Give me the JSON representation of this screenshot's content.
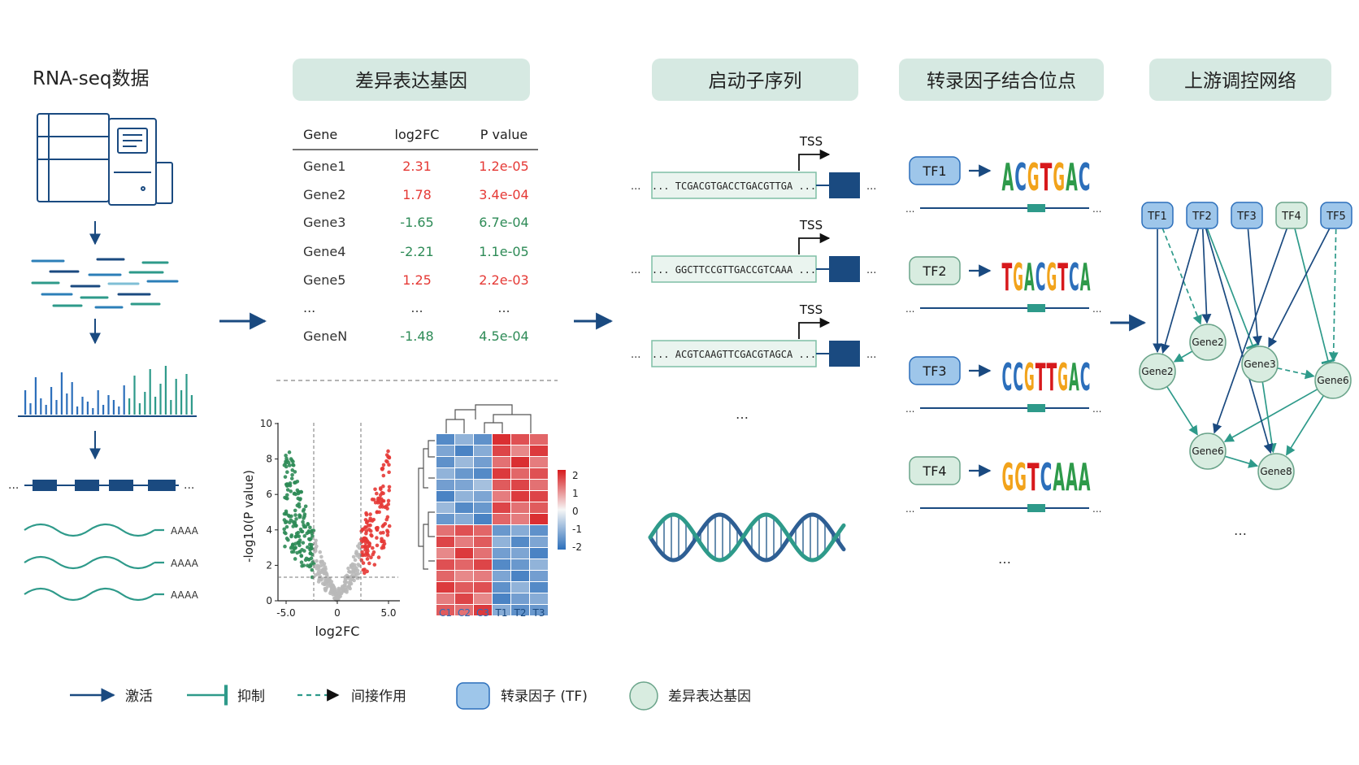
{
  "stages": {
    "rnaseq": "RNA-seq数据",
    "deg": "差异表达基因",
    "promoter": "启动子序列",
    "tfbs": "转录因子结合位点",
    "network": "上游调控网络"
  },
  "reads": {
    "polya": "AAAA"
  },
  "deg_table": {
    "headers": [
      "Gene",
      "log2FC",
      "P value"
    ],
    "rows": [
      [
        "Gene1",
        "2.31",
        "1.2e-05"
      ],
      [
        "Gene2",
        "1.78",
        "3.4e-04"
      ],
      [
        "Gene3",
        "-1.65",
        "6.7e-04"
      ],
      [
        "Gene4",
        "-2.21",
        "1.1e-05"
      ],
      [
        "Gene5",
        "1.25",
        "2.2e-03"
      ],
      [
        "...",
        "...",
        "..."
      ],
      [
        "GeneN",
        "-1.48",
        "4.5e-04"
      ]
    ]
  },
  "colors": {
    "navy": "#1a4a80",
    "teal": "#2e9a8a",
    "up": "#e53935",
    "down": "#2e8b57",
    "header_bg": "#d6e9e2",
    "tf_fill": "#9ec6ea",
    "gene_fill": "#d8ece0",
    "box_fill": "#eaf4ef",
    "box_stroke": "#7fbfa6"
  },
  "volcano": {
    "xlabel": "log2FC",
    "ylabel": "-log10(P value)",
    "xticks": [
      "-5.0",
      "0",
      "5.0"
    ],
    "yticks": [
      "0",
      "2",
      "4",
      "6",
      "8",
      "10"
    ]
  },
  "heatmap": {
    "columns": [
      "C1",
      "C2",
      "C3",
      "T1",
      "T2",
      "T3"
    ],
    "scale": [
      "2",
      "1",
      "0",
      "-1",
      "-2"
    ],
    "values": [
      [
        -1.6,
        -1.0,
        -1.5,
        1.8,
        1.5,
        1.3
      ],
      [
        -1.2,
        -1.7,
        -1.1,
        1.6,
        1.0,
        1.7
      ],
      [
        -1.5,
        -0.9,
        -1.3,
        1.2,
        1.8,
        1.1
      ],
      [
        -1.0,
        -1.4,
        -1.6,
        1.7,
        1.3,
        1.5
      ],
      [
        -1.3,
        -1.2,
        -0.8,
        1.4,
        1.6,
        1.2
      ],
      [
        -1.7,
        -1.0,
        -1.2,
        1.1,
        1.7,
        1.6
      ],
      [
        -0.9,
        -1.6,
        -1.4,
        1.6,
        1.2,
        1.4
      ],
      [
        -1.4,
        -1.1,
        -1.7,
        1.3,
        1.1,
        1.8
      ],
      [
        1.2,
        1.5,
        1.3,
        -1.4,
        -1.1,
        -1.5
      ],
      [
        1.6,
        1.1,
        1.4,
        -1.0,
        -1.6,
        -1.2
      ],
      [
        1.0,
        1.7,
        1.2,
        -1.3,
        -1.2,
        -1.7
      ],
      [
        1.5,
        1.3,
        1.6,
        -1.6,
        -1.4,
        -1.0
      ],
      [
        1.3,
        1.0,
        1.1,
        -1.2,
        -1.7,
        -1.3
      ],
      [
        1.7,
        1.4,
        1.5,
        -1.5,
        -1.0,
        -1.6
      ],
      [
        1.1,
        1.6,
        1.0,
        -1.7,
        -1.3,
        -1.1
      ],
      [
        1.4,
        1.2,
        1.7,
        -1.1,
        -1.5,
        -1.4
      ]
    ]
  },
  "promoters": [
    {
      "seq": "... TCGACGTGACCTGACGTTGA ...",
      "tss": "TSS"
    },
    {
      "seq": "... GGCTTCCGTTGACCGTCAAA ...",
      "tss": "TSS"
    },
    {
      "seq": "... ACGTCAAGTTCGACGTAGCA ...",
      "tss": "TSS"
    }
  ],
  "ellipsis": "...",
  "ellipsis_h": "…",
  "tfs": [
    {
      "label": "TF1",
      "motif": "ACGTGAC"
    },
    {
      "label": "TF2",
      "motif": "TGACGTCA"
    },
    {
      "label": "TF3",
      "motif": "CCGTTGAC"
    },
    {
      "label": "TF4",
      "motif": "GGTCAAA"
    }
  ],
  "network": {
    "tfs": [
      "TF1",
      "TF2",
      "TF3",
      "TF4",
      "TF5"
    ],
    "genes": [
      "Gene2",
      "Gene2",
      "Gene3",
      "Gene6",
      "Gene6",
      "Gene8"
    ]
  },
  "legend": {
    "activate": "激活",
    "inhibit": "抑制",
    "indirect": "间接作用",
    "tf": "转录因子 (TF)",
    "gene": "差异表达基因"
  }
}
